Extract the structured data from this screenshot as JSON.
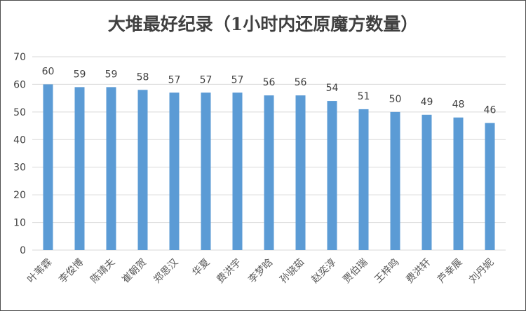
{
  "chart_data": {
    "type": "bar",
    "title": "大堆最好纪录（1小时内还原魔方数量）",
    "categories": [
      "叶苇霖",
      "李俊博",
      "陈靖夫",
      "崔朝贺",
      "郑思汉",
      "华夏",
      "费洪宇",
      "李梦晗",
      "孙骁茹",
      "赵奕淳",
      "贾伯瑞",
      "王梓鸣",
      "费洪轩",
      "芦幸展",
      "刘丹妮"
    ],
    "values": [
      60,
      59,
      59,
      58,
      57,
      57,
      57,
      56,
      56,
      54,
      51,
      50,
      49,
      48,
      46
    ],
    "ylim": [
      0,
      70
    ],
    "yticks": [
      0,
      10,
      20,
      30,
      40,
      50,
      60,
      70
    ],
    "grid": true,
    "bar_color": "#5b9bd5",
    "grid_color": "#d9d9d9"
  }
}
